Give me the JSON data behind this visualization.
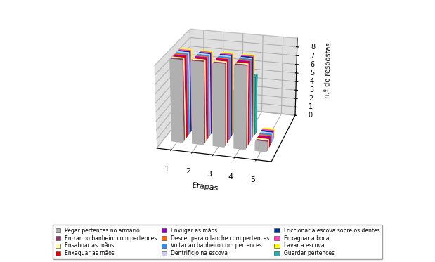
{
  "title": "",
  "xlabel": "Etapas",
  "ylabel": "n.º de respostas",
  "etapas": [
    1,
    2,
    3,
    4,
    5
  ],
  "yticks": [
    0,
    1,
    2,
    3,
    4,
    5,
    6,
    7,
    8
  ],
  "legend_labels": [
    "Pegar pertences no armário",
    "Entrar no banheiro com pertences",
    "Ensaboar as mãos",
    "Enxaguar as mãos",
    "Enxugar as mãos",
    "Descer para o lanche com pertences",
    "Voltar ao banheiro com pertences",
    "Dentrificio na escova",
    "Friccionar a escova sobre os dentes",
    "Enxaguar a boca",
    "Lavar a escova",
    "Guardar pertences"
  ],
  "bar_colors": [
    "#B0B0B0",
    "#8B3A6A",
    "#FFFFA0",
    "#DD0000",
    "#9900CC",
    "#FF6600",
    "#1E90FF",
    "#CCCCEE",
    "#003399",
    "#FF44BB",
    "#FFFF00",
    "#20B0B0"
  ],
  "main_heights": [
    9,
    9,
    9,
    9,
    1
  ],
  "teal_heights": [
    7.5,
    4.5,
    4.5,
    6.5,
    0
  ],
  "floor_color": "#C0C0C0",
  "wall_color": "#E8E8E8",
  "n_slices": 11,
  "elev": 22,
  "azim": -75
}
